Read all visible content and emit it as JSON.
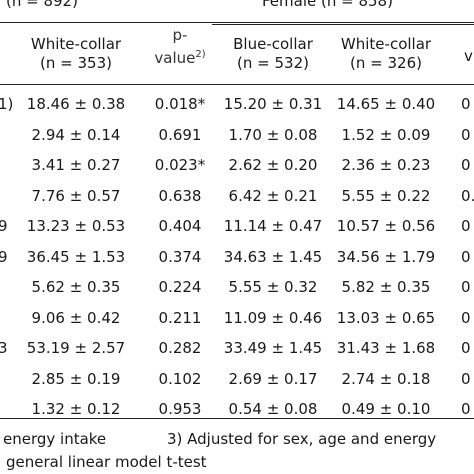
{
  "header": {
    "male_group_partial": "(n = 892)",
    "female_group": "Female (n = 858)",
    "pvalue_line1": "p-",
    "pvalue_line2": "value",
    "pvalue_sup": "2)",
    "col_white_male": "White-collar",
    "col_white_male_n": "(n = 353)",
    "col_blue_female": "Blue-collar",
    "col_blue_female_n": "(n = 532)",
    "col_white_female": "White-collar",
    "col_white_female_n": "(n = 326)",
    "right_cut_header": "v",
    "left_cut_header_mark": "1)"
  },
  "rows": [
    {
      "left": "1)",
      "white_male": "18.46 ± 0.38",
      "pvalue": "0.018*",
      "blue_female": "15.20 ± 0.31",
      "white_female": "14.65 ± 0.40",
      "right": "0"
    },
    {
      "left": "",
      "white_male": "2.94 ± 0.14",
      "pvalue": "0.691",
      "blue_female": "1.70 ± 0.08",
      "white_female": "1.52 ± 0.09",
      "right": "0"
    },
    {
      "left": "",
      "white_male": "3.41 ± 0.27",
      "pvalue": "0.023*",
      "blue_female": "2.62 ± 0.20",
      "white_female": "2.36 ± 0.23",
      "right": "0"
    },
    {
      "left": "",
      "white_male": "7.76 ± 0.57",
      "pvalue": "0.638",
      "blue_female": "6.42 ± 0.21",
      "white_female": "5.55 ± 0.22",
      "right": "0.0"
    },
    {
      "left": "9",
      "white_male": "13.23 ± 0.53",
      "pvalue": "0.404",
      "blue_female": "11.14 ± 0.47",
      "white_female": "10.57 ± 0.56",
      "right": "0"
    },
    {
      "left": "9",
      "white_male": "36.45 ± 1.53",
      "pvalue": "0.374",
      "blue_female": "34.63 ± 1.45",
      "white_female": "34.56 ± 1.79",
      "right": "0"
    },
    {
      "left": "",
      "white_male": "5.62 ± 0.35",
      "pvalue": "0.224",
      "blue_female": "5.55 ± 0.32",
      "white_female": "5.82 ± 0.35",
      "right": "0"
    },
    {
      "left": "",
      "white_male": "9.06 ± 0.42",
      "pvalue": "0.211",
      "blue_female": "11.09 ± 0.46",
      "white_female": "13.03 ± 0.65",
      "right": "0"
    },
    {
      "left": "3",
      "white_male": "53.19 ± 2.57",
      "pvalue": "0.282",
      "blue_female": "33.49 ± 1.45",
      "white_female": "31.43 ± 1.68",
      "right": "0"
    },
    {
      "left": "",
      "white_male": "2.85 ± 0.19",
      "pvalue": "0.102",
      "blue_female": "2.69 ± 0.17",
      "white_female": "2.74 ± 0.18",
      "right": "0"
    },
    {
      "left": "",
      "white_male": "1.32 ± 0.12",
      "pvalue": "0.953",
      "blue_female": "0.54 ± 0.08",
      "white_female": "0.49 ± 0.10",
      "right": "0"
    }
  ],
  "footnotes": {
    "line1_left": "energy intake",
    "line1_right": "3) Adjusted for sex, age and energy",
    "line2": "general linear model t-test"
  }
}
